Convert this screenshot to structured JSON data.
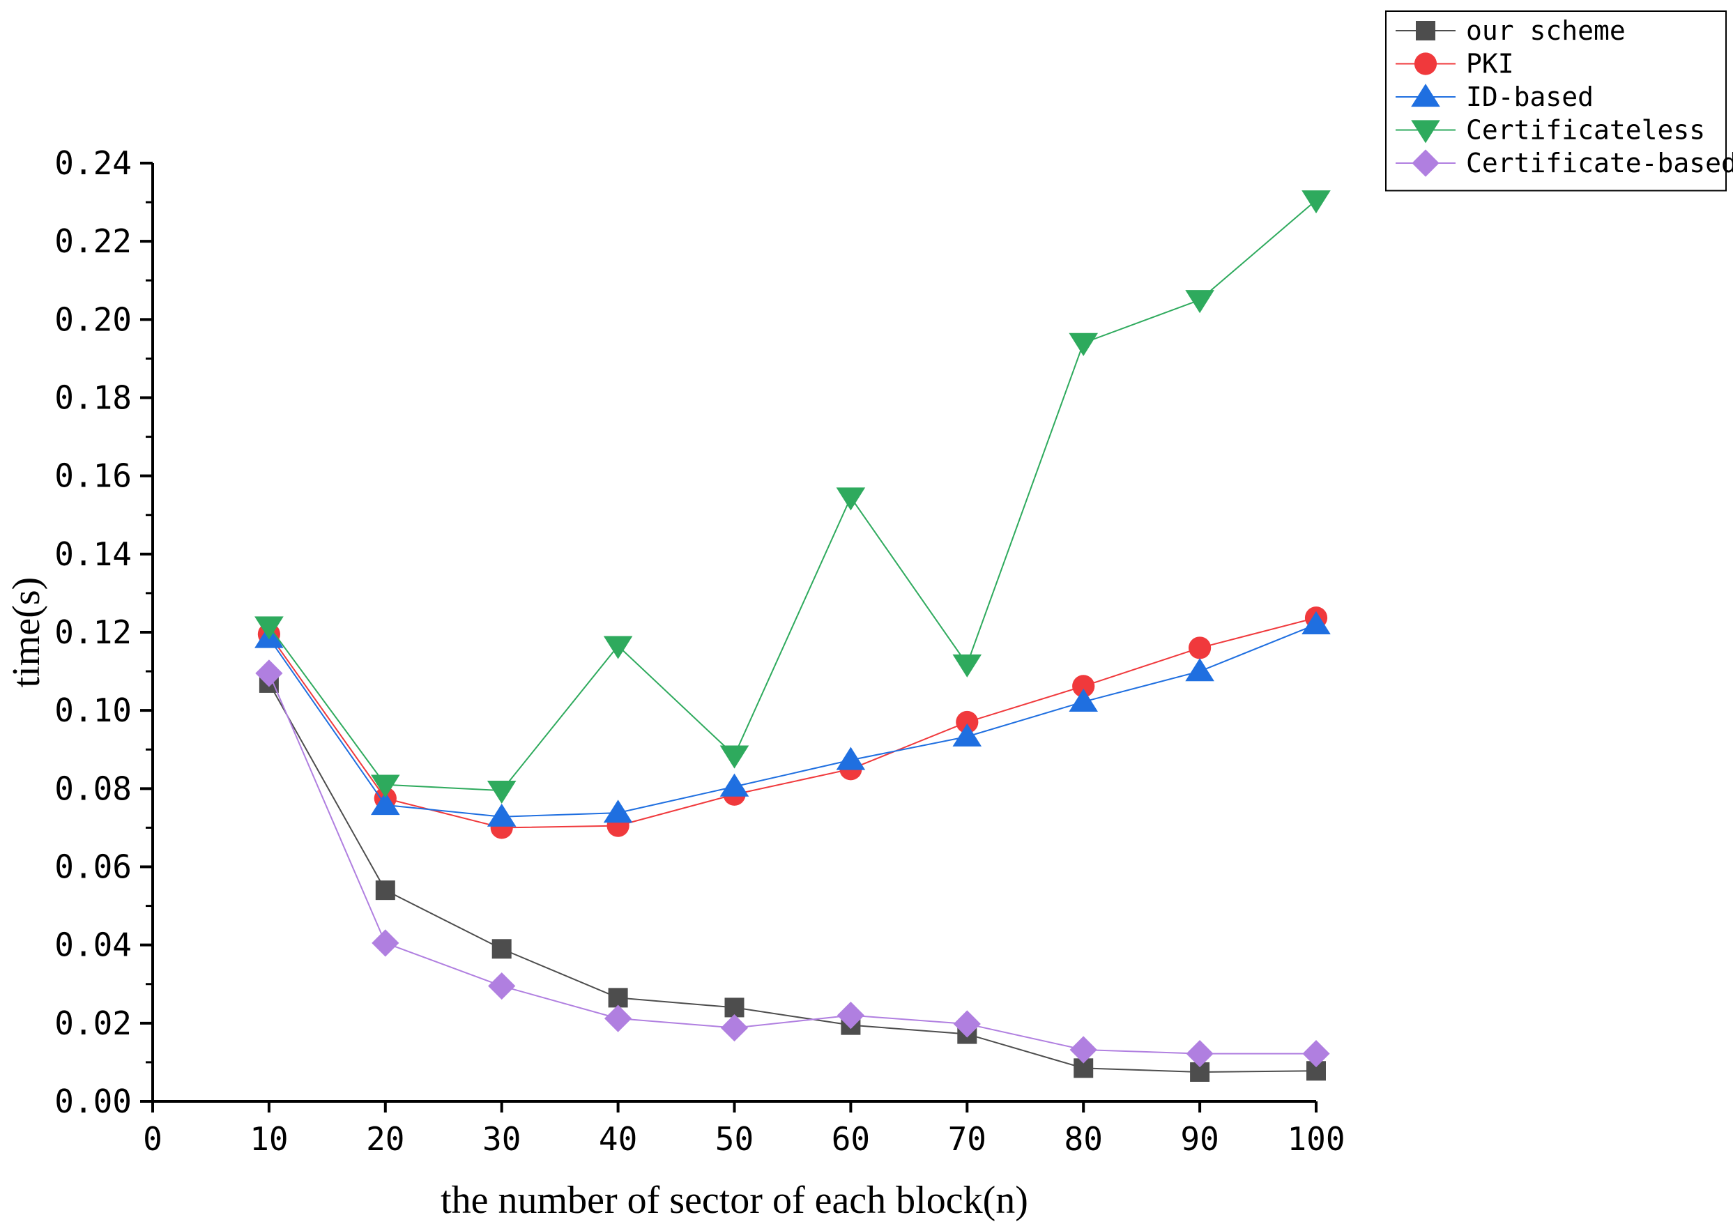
{
  "chart_data": {
    "type": "line",
    "title": "",
    "xlabel": "the number of sector of each block(n)",
    "ylabel": "time(s)",
    "xlim": [
      0,
      100
    ],
    "ylim": [
      0.0,
      0.24
    ],
    "xticks": [
      "0",
      "10",
      "20",
      "30",
      "40",
      "50",
      "60",
      "70",
      "80",
      "90",
      "100"
    ],
    "yticks": [
      "0.00",
      "0.02",
      "0.04",
      "0.06",
      "0.08",
      "0.10",
      "0.12",
      "0.14",
      "0.16",
      "0.18",
      "0.20",
      "0.22",
      "0.24"
    ],
    "legend_position": "top-right",
    "x": [
      10,
      20,
      30,
      40,
      50,
      60,
      70,
      80,
      90,
      100
    ],
    "series": [
      {
        "name": "our scheme",
        "color": "#4d4d4d",
        "marker": "square",
        "values": [
          0.107,
          0.054,
          0.039,
          0.0265,
          0.024,
          0.0195,
          0.0172,
          0.0085,
          0.0075,
          0.0078
        ]
      },
      {
        "name": "PKI",
        "color": "#f0393c",
        "marker": "circle",
        "values": [
          0.1195,
          0.0775,
          0.07,
          0.0705,
          0.0785,
          0.085,
          0.097,
          0.1062,
          0.116,
          0.1237
        ]
      },
      {
        "name": "ID-based",
        "color": "#1f6fe0",
        "marker": "triangle-up",
        "values": [
          0.1185,
          0.0758,
          0.0728,
          0.0738,
          0.0805,
          0.0873,
          0.0933,
          0.1022,
          0.11,
          0.122
        ]
      },
      {
        "name": "Certificateless",
        "color": "#2eaa5d",
        "marker": "triangle-down",
        "values": [
          0.1215,
          0.081,
          0.0795,
          0.1165,
          0.0885,
          0.1545,
          0.1118,
          0.194,
          0.205,
          0.2305
        ]
      },
      {
        "name": "Certificate-based",
        "color": "#b07fe0",
        "marker": "diamond",
        "values": [
          0.1095,
          0.0405,
          0.0295,
          0.0212,
          0.0188,
          0.022,
          0.0198,
          0.0132,
          0.0122,
          0.0122
        ]
      }
    ]
  }
}
